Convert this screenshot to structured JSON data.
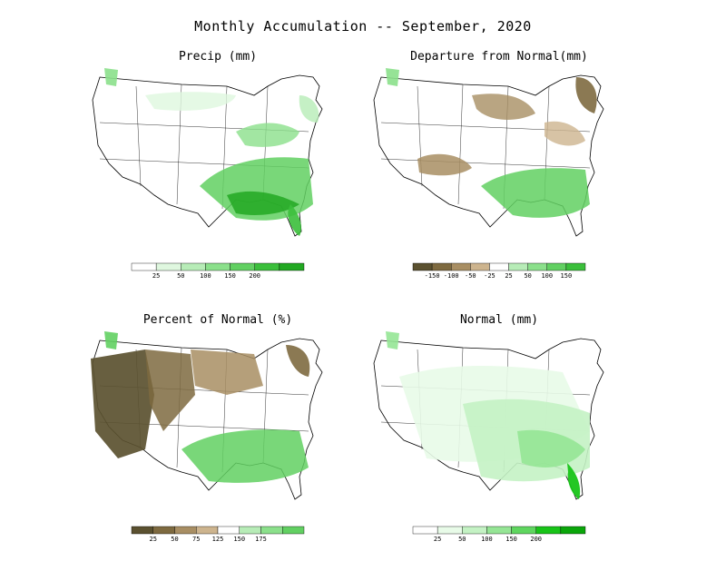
{
  "figure": {
    "title": "Monthly Accumulation -- September, 2020"
  },
  "panels": [
    {
      "id": "precip",
      "title": "Precip (mm)",
      "colorbar": {
        "labels": [
          "25",
          "50",
          "100",
          "150",
          "200"
        ],
        "colors": [
          "#ffffff",
          "#dff7df",
          "#b7ecb7",
          "#8be08b",
          "#62d062",
          "#3bbf3b",
          "#22a822"
        ]
      }
    },
    {
      "id": "departure",
      "title": "Departure from Normal(mm)",
      "colorbar": {
        "labels": [
          "-150",
          "-100",
          "-50",
          "-25",
          "25",
          "50",
          "100",
          "150"
        ],
        "colors": [
          "#5b5130",
          "#7e6a40",
          "#a88e63",
          "#cdb48e",
          "#ffffff",
          "#b7ecb7",
          "#8be08b",
          "#62d062",
          "#3bbf3b"
        ]
      }
    },
    {
      "id": "percent",
      "title": "Percent of Normal (%)",
      "colorbar": {
        "labels": [
          "25",
          "50",
          "75",
          "125",
          "150",
          "175"
        ],
        "colors": [
          "#5b5130",
          "#7e6a40",
          "#a88e63",
          "#cdb48e",
          "#ffffff",
          "#b7ecb7",
          "#8be08b",
          "#62d062"
        ]
      }
    },
    {
      "id": "normal",
      "title": "Normal (mm)",
      "colorbar": {
        "labels": [
          "25",
          "50",
          "100",
          "150",
          "200"
        ],
        "colors": [
          "#ffffff",
          "#e8fbe8",
          "#c4f2c4",
          "#95e595",
          "#5fd65f",
          "#18c418",
          "#0aa60a"
        ]
      }
    }
  ]
}
